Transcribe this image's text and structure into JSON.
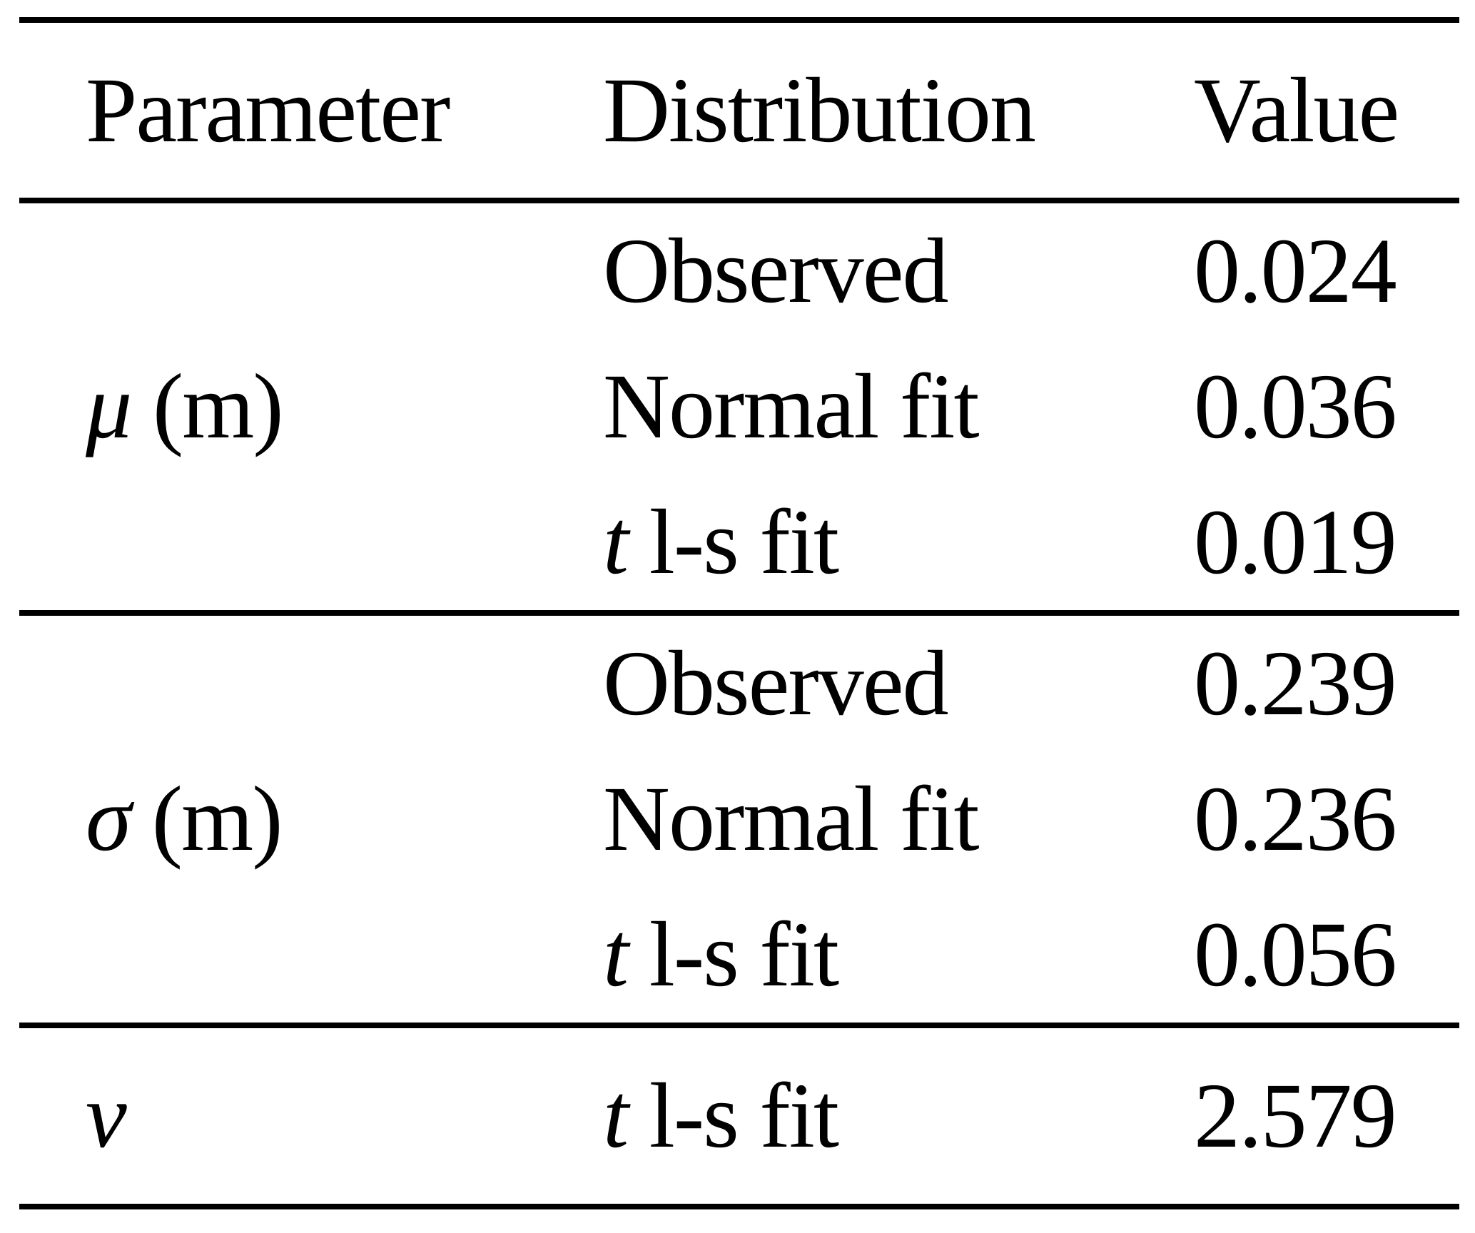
{
  "colors": {
    "text": "#000000",
    "rule": "#000000",
    "background": "#ffffff"
  },
  "table": {
    "header": {
      "parameter": "Parameter",
      "distribution": "Distribution",
      "value": "Value"
    },
    "groups": [
      {
        "parameter": {
          "symbol": "μ",
          "unit": " (m)"
        },
        "rows": [
          {
            "dist_italic": "",
            "dist_rest": "Observed",
            "value": "0.024"
          },
          {
            "dist_italic": "",
            "dist_rest": "Normal fit",
            "value": "0.036"
          },
          {
            "dist_italic": "t",
            "dist_rest": " l-s fit",
            "value": "0.019"
          }
        ]
      },
      {
        "parameter": {
          "symbol": "σ",
          "unit": " (m)"
        },
        "rows": [
          {
            "dist_italic": "",
            "dist_rest": "Observed",
            "value": "0.239"
          },
          {
            "dist_italic": "",
            "dist_rest": "Normal fit",
            "value": "0.236"
          },
          {
            "dist_italic": "t",
            "dist_rest": " l-s fit",
            "value": "0.056"
          }
        ]
      },
      {
        "parameter": {
          "symbol": "ν",
          "unit": ""
        },
        "rows": [
          {
            "dist_italic": "t",
            "dist_rest": " l-s fit",
            "value": "2.579"
          }
        ]
      }
    ]
  }
}
